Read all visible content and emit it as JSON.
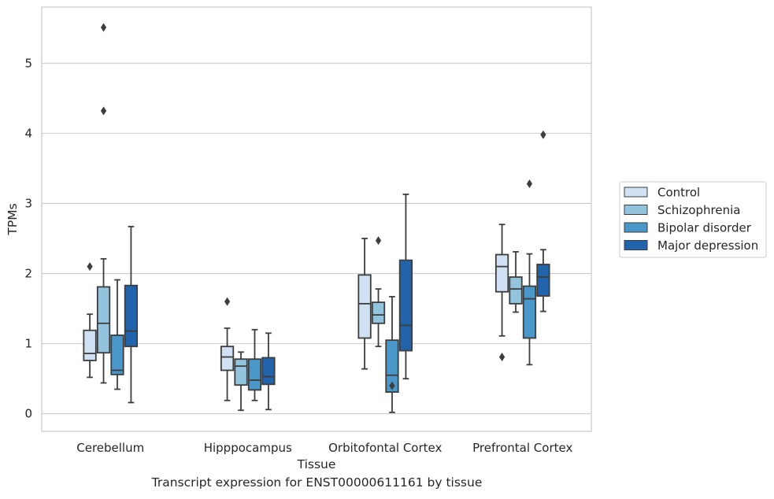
{
  "caption": "Transcript expression for ENST00000611161 by tissue",
  "chart_data": {
    "type": "box",
    "title": "",
    "xlabel": "Tissue",
    "ylabel": "TPMs",
    "ylim": [
      -0.25,
      5.8
    ],
    "yticks": [
      0,
      1,
      2,
      3,
      4,
      5
    ],
    "grid": "horizontal",
    "legend_position": "right",
    "categories": [
      "Cerebellum",
      "Hipppocampus",
      "Orbitofontal Cortex",
      "Prefrontal Cortex"
    ],
    "series": [
      {
        "name": "Control",
        "color": "#cfe1f2",
        "boxes": [
          {
            "whislo": 0.52,
            "q1": 0.76,
            "med": 0.86,
            "q3": 1.19,
            "whishi": 1.42,
            "fliers": [
              2.1
            ]
          },
          {
            "whislo": 0.19,
            "q1": 0.62,
            "med": 0.81,
            "q3": 0.96,
            "whishi": 1.22,
            "fliers": [
              1.6
            ]
          },
          {
            "whislo": 0.64,
            "q1": 1.08,
            "med": 1.57,
            "q3": 1.98,
            "whishi": 2.5,
            "fliers": []
          },
          {
            "whislo": 1.11,
            "q1": 1.74,
            "med": 2.1,
            "q3": 2.27,
            "whishi": 2.7,
            "fliers": [
              0.81
            ]
          }
        ]
      },
      {
        "name": "Schizophrenia",
        "color": "#93c4de",
        "boxes": [
          {
            "whislo": 0.44,
            "q1": 0.87,
            "med": 1.29,
            "q3": 1.81,
            "whishi": 2.21,
            "fliers": [
              4.32,
              5.51
            ]
          },
          {
            "whislo": 0.05,
            "q1": 0.41,
            "med": 0.68,
            "q3": 0.78,
            "whishi": 0.88,
            "fliers": []
          },
          {
            "whislo": 0.96,
            "q1": 1.29,
            "med": 1.41,
            "q3": 1.59,
            "whishi": 1.78,
            "fliers": [
              2.47
            ]
          },
          {
            "whislo": 1.45,
            "q1": 1.57,
            "med": 1.78,
            "q3": 1.95,
            "whishi": 2.31,
            "fliers": []
          }
        ]
      },
      {
        "name": "Bipolar disorder",
        "color": "#4a98c9",
        "boxes": [
          {
            "whislo": 0.35,
            "q1": 0.56,
            "med": 0.62,
            "q3": 1.12,
            "whishi": 1.91,
            "fliers": []
          },
          {
            "whislo": 0.19,
            "q1": 0.34,
            "med": 0.48,
            "q3": 0.78,
            "whishi": 1.2,
            "fliers": []
          },
          {
            "whislo": 0.02,
            "q1": 0.31,
            "med": 0.55,
            "q3": 1.05,
            "whishi": 1.67,
            "fliers": [
              0.4
            ]
          },
          {
            "whislo": 0.7,
            "q1": 1.08,
            "med": 1.64,
            "q3": 1.82,
            "whishi": 2.28,
            "fliers": [
              3.28
            ]
          }
        ]
      },
      {
        "name": "Major depression",
        "color": "#2164ab",
        "boxes": [
          {
            "whislo": 0.16,
            "q1": 0.96,
            "med": 1.18,
            "q3": 1.83,
            "whishi": 2.67,
            "fliers": []
          },
          {
            "whislo": 0.06,
            "q1": 0.42,
            "med": 0.53,
            "q3": 0.8,
            "whishi": 1.15,
            "fliers": []
          },
          {
            "whislo": 0.5,
            "q1": 0.9,
            "med": 1.26,
            "q3": 2.19,
            "whishi": 3.13,
            "fliers": []
          },
          {
            "whislo": 1.46,
            "q1": 1.68,
            "med": 1.95,
            "q3": 2.13,
            "whishi": 2.34,
            "fliers": [
              3.98
            ]
          }
        ]
      }
    ]
  }
}
